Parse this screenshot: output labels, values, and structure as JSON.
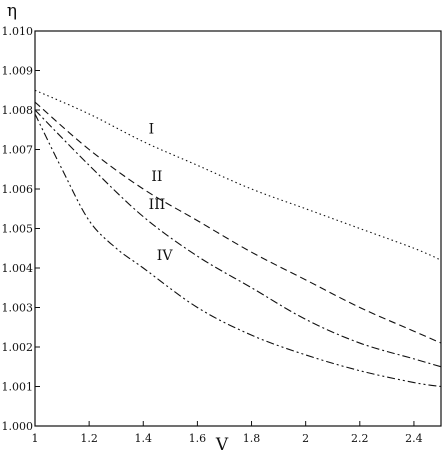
{
  "chart_data": {
    "type": "line",
    "xlabel": "V",
    "ylabel": "η",
    "xlim": [
      1,
      2.5
    ],
    "ylim": [
      1.0,
      1.01
    ],
    "grid": false,
    "x_ticks": [
      {
        "value": 1,
        "label": "1"
      },
      {
        "value": 1.2,
        "label": "1.2"
      },
      {
        "value": 1.4,
        "label": "1.4"
      },
      {
        "value": 1.6,
        "label": "1.6"
      },
      {
        "value": 1.8,
        "label": "1.8"
      },
      {
        "value": 2.0,
        "label": "2"
      },
      {
        "value": 2.2,
        "label": "2.2"
      },
      {
        "value": 2.4,
        "label": "2.4"
      }
    ],
    "y_ticks": [
      {
        "value": 1.0,
        "label": "1.000"
      },
      {
        "value": 1.001,
        "label": "1.001"
      },
      {
        "value": 1.002,
        "label": "1.002"
      },
      {
        "value": 1.003,
        "label": "1.003"
      },
      {
        "value": 1.004,
        "label": "1.004"
      },
      {
        "value": 1.005,
        "label": "1.005"
      },
      {
        "value": 1.006,
        "label": "1.006"
      },
      {
        "value": 1.007,
        "label": "1.007"
      },
      {
        "value": 1.008,
        "label": "1.008"
      },
      {
        "value": 1.009,
        "label": "1.009"
      },
      {
        "value": 1.01,
        "label": "1.010"
      }
    ],
    "series": [
      {
        "name": "I",
        "dash": "dotted",
        "x": [
          1.0,
          1.2,
          1.4,
          1.6,
          1.8,
          2.0,
          2.2,
          2.4,
          2.5
        ],
        "y": [
          1.0085,
          1.0079,
          1.0072,
          1.0066,
          1.006,
          1.0055,
          1.005,
          1.0045,
          1.0042
        ],
        "label": "I",
        "label_at": [
          1.42,
          1.0074
        ]
      },
      {
        "name": "II",
        "dash": "dashed",
        "x": [
          1.0,
          1.2,
          1.4,
          1.6,
          1.8,
          2.0,
          2.2,
          2.4,
          2.5
        ],
        "y": [
          1.0082,
          1.007,
          1.006,
          1.0052,
          1.0044,
          1.0037,
          1.003,
          1.0024,
          1.0021
        ],
        "label": "II",
        "label_at": [
          1.43,
          1.0062
        ]
      },
      {
        "name": "III",
        "dash": "dashdot",
        "x": [
          1.0,
          1.2,
          1.4,
          1.6,
          1.8,
          2.0,
          2.2,
          2.4,
          2.5
        ],
        "y": [
          1.008,
          1.0066,
          1.0053,
          1.0043,
          1.0035,
          1.0027,
          1.0021,
          1.0017,
          1.0015
        ],
        "label": "III",
        "label_at": [
          1.42,
          1.0055
        ]
      },
      {
        "name": "IV",
        "dash": "dashdotdot",
        "x": [
          1.0,
          1.1,
          1.2,
          1.3,
          1.4,
          1.6,
          1.8,
          2.0,
          2.2,
          2.4,
          2.5
        ],
        "y": [
          1.0079,
          1.0065,
          1.0052,
          1.0045,
          1.004,
          1.003,
          1.0023,
          1.0018,
          1.0014,
          1.0011,
          1.001
        ],
        "label": "IV",
        "label_at": [
          1.45,
          1.0042
        ]
      }
    ]
  }
}
